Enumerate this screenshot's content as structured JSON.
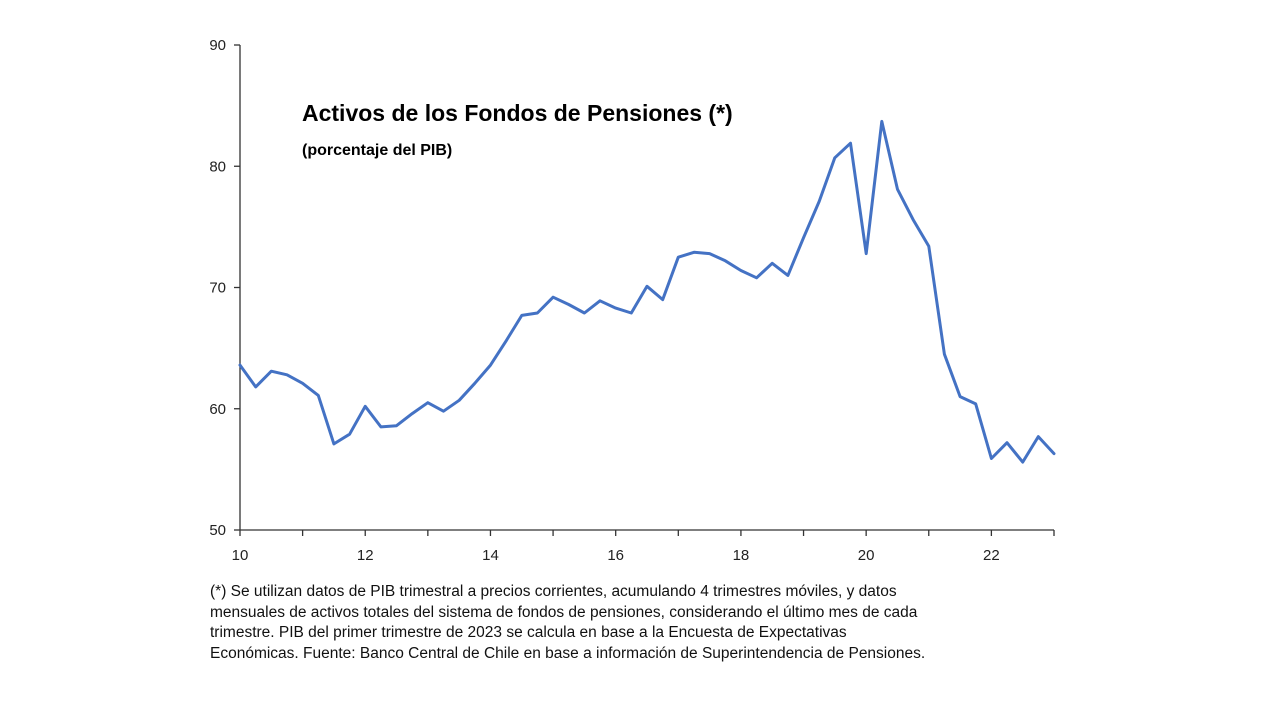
{
  "chart_data": {
    "type": "line",
    "title": "Activos de los Fondos de Pensiones (*)",
    "subtitle": "(porcentaje del PIB)",
    "xlabel": "",
    "ylabel": "",
    "xlim": [
      10,
      23
    ],
    "ylim": [
      50,
      90
    ],
    "x_ticks": [
      10,
      12,
      14,
      16,
      18,
      20,
      22
    ],
    "y_ticks": [
      50,
      60,
      70,
      80,
      90
    ],
    "grid": false,
    "line_color": "#4472C4",
    "series": [
      {
        "x": [
          10.0,
          10.25,
          10.5,
          10.75,
          11.0,
          11.25,
          11.5,
          11.75,
          12.0,
          12.25,
          12.5,
          12.75,
          13.0,
          13.25,
          13.5,
          13.75,
          14.0,
          14.25,
          14.5,
          14.75,
          15.0,
          15.25,
          15.5,
          15.75,
          16.0,
          16.25,
          16.5,
          16.75,
          17.0,
          17.25,
          17.5,
          17.75,
          18.0,
          18.25,
          18.5,
          18.75,
          19.0,
          19.25,
          19.5,
          19.75,
          20.0,
          20.25,
          20.5,
          20.75,
          21.0,
          21.25,
          21.5,
          21.75,
          22.0,
          22.25,
          22.5,
          22.75,
          23.0
        ],
        "values": [
          63.6,
          61.8,
          63.1,
          62.8,
          62.1,
          61.1,
          57.1,
          57.9,
          60.2,
          58.5,
          58.6,
          59.6,
          60.5,
          59.8,
          60.7,
          62.1,
          63.6,
          65.6,
          67.7,
          67.9,
          69.2,
          68.6,
          67.9,
          68.9,
          68.3,
          67.9,
          70.1,
          69.0,
          72.5,
          72.9,
          72.8,
          72.2,
          71.4,
          70.8,
          72.0,
          71.0,
          74.1,
          77.1,
          80.7,
          81.9,
          72.8,
          83.7,
          78.1,
          75.6,
          73.4,
          64.5,
          61.0,
          60.4,
          55.9,
          57.2,
          55.6,
          57.7,
          56.3
        ]
      }
    ]
  },
  "footnote": {
    "lines": [
      "(*) Se utilizan datos de PIB trimestral a precios corrientes, acumulando 4 trimestres móviles, y datos",
      "mensuales de activos totales del sistema de fondos de pensiones, considerando el último mes de cada",
      "trimestre. PIB del primer trimestre de 2023 se calcula en base a la Encuesta de Expectativas",
      "Económicas.  Fuente: Banco Central de Chile en base a información de Superintendencia de Pensiones."
    ]
  }
}
